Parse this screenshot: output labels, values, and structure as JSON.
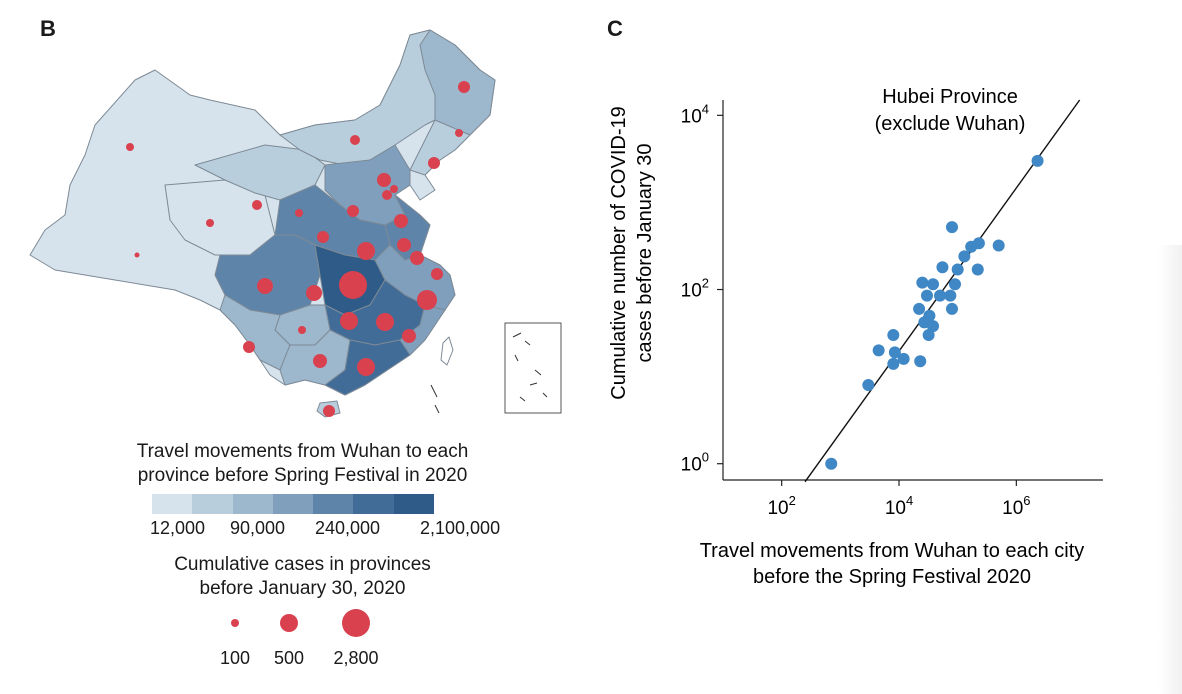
{
  "panel_b": {
    "letter": "B",
    "travel_legend": {
      "title_line1": "Travel movements from Wuhan to each",
      "title_line2": "province before Spring Festival in 2020",
      "colors": [
        "#d6e3ec",
        "#b9cedd",
        "#9db7cd",
        "#7f9fbd",
        "#5f84a9",
        "#416c97",
        "#2e5b87"
      ],
      "tick_labels": [
        "12,000",
        "90,000",
        "240,000",
        "2,100,000"
      ]
    },
    "cases_legend": {
      "title_line1": "Cumulative cases in provinces",
      "title_line2": "before January 30, 2020",
      "labels": [
        "100",
        "500",
        "2,800"
      ]
    },
    "bubble_color": "#d9414f"
  },
  "panel_c": {
    "letter": "C",
    "point_color": "#3f87c5"
  },
  "chart_data": {
    "type": "scatter",
    "title": "",
    "annotation_line1": "Hubei Province",
    "annotation_line2": "(exclude Wuhan)",
    "xlabel_line1": "Travel movements from Wuhan to each city",
    "xlabel_line2": "before the Spring Festival 2020",
    "ylabel_line1": "Cumulative number of COVID-19",
    "ylabel_line2": "cases before January 30",
    "x_scale": "log10",
    "y_scale": "log10",
    "xlim": [
      10,
      30000000
    ],
    "ylim": [
      0.65,
      15000
    ],
    "x_ticks": [
      {
        "value": 100,
        "base": "10",
        "exp": "2"
      },
      {
        "value": 10000,
        "base": "10",
        "exp": "4"
      },
      {
        "value": 1000000,
        "base": "10",
        "exp": "6"
      }
    ],
    "y_ticks": [
      {
        "value": 1,
        "base": "10",
        "exp": "0"
      },
      {
        "value": 100,
        "base": "10",
        "exp": "2"
      },
      {
        "value": 10000,
        "base": "10",
        "exp": "4"
      }
    ],
    "fit_line": {
      "x": [
        250,
        12000000
      ],
      "y": [
        0.62,
        15000
      ]
    },
    "points": [
      {
        "x": 2300000,
        "y": 3000
      },
      {
        "x": 80000,
        "y": 520
      },
      {
        "x": 230000,
        "y": 340
      },
      {
        "x": 500000,
        "y": 320
      },
      {
        "x": 170000,
        "y": 310
      },
      {
        "x": 130000,
        "y": 240
      },
      {
        "x": 55000,
        "y": 180
      },
      {
        "x": 100000,
        "y": 170
      },
      {
        "x": 220000,
        "y": 170
      },
      {
        "x": 25000,
        "y": 120
      },
      {
        "x": 38000,
        "y": 115
      },
      {
        "x": 90000,
        "y": 115
      },
      {
        "x": 30000,
        "y": 85
      },
      {
        "x": 50000,
        "y": 85
      },
      {
        "x": 75000,
        "y": 85
      },
      {
        "x": 22000,
        "y": 60
      },
      {
        "x": 80000,
        "y": 60
      },
      {
        "x": 33000,
        "y": 50
      },
      {
        "x": 27000,
        "y": 42
      },
      {
        "x": 38000,
        "y": 38
      },
      {
        "x": 32000,
        "y": 30
      },
      {
        "x": 8000,
        "y": 30
      },
      {
        "x": 4500,
        "y": 20
      },
      {
        "x": 8500,
        "y": 19
      },
      {
        "x": 12000,
        "y": 16
      },
      {
        "x": 23000,
        "y": 15
      },
      {
        "x": 8000,
        "y": 14
      },
      {
        "x": 3000,
        "y": 8
      },
      {
        "x": 700,
        "y": 1
      }
    ]
  }
}
